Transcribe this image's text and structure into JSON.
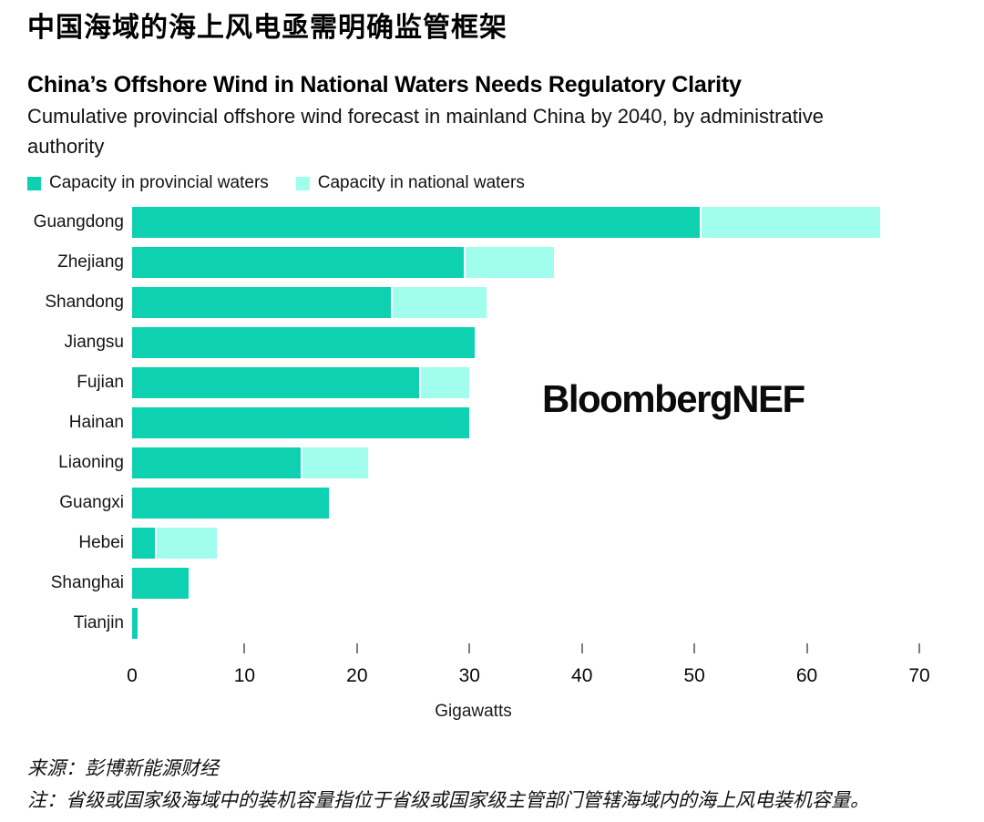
{
  "header": {
    "title_zh": "中国海域的海上风电亟需明确监管框架",
    "title_en": "China’s Offshore Wind in National Waters Needs Regulatory Clarity",
    "subtitle": "Cumulative provincial offshore wind forecast in mainland China by 2040, by administrative authority"
  },
  "legend": {
    "provincial_label": "Capacity in provincial waters",
    "national_label": "Capacity in national waters"
  },
  "branding": {
    "logo_text": "BloombergNEF"
  },
  "colors": {
    "provincial": "#0ed1b2",
    "national": "#a1fdec",
    "tick": "#7d7d7d"
  },
  "chart_data": {
    "type": "bar",
    "orientation": "horizontal",
    "stacked": true,
    "title": "China’s Offshore Wind in National Waters Needs Regulatory Clarity",
    "subtitle": "Cumulative provincial offshore wind forecast in mainland China by 2040, by administrative authority",
    "categories": [
      "Guangdong",
      "Zhejiang",
      "Shandong",
      "Jiangsu",
      "Fujian",
      "Hainan",
      "Liaoning",
      "Guangxi",
      "Hebei",
      "Shanghai",
      "Tianjin"
    ],
    "series": [
      {
        "name": "Capacity in provincial waters",
        "color": "#0ed1b2",
        "values": [
          50.5,
          29.5,
          23,
          30.5,
          25.5,
          30,
          15,
          17.5,
          2,
          5,
          0.5
        ]
      },
      {
        "name": "Capacity in national waters",
        "color": "#a1fdec",
        "values": [
          16,
          8,
          8.5,
          0,
          4.5,
          0,
          6,
          0,
          5.5,
          0,
          0
        ]
      }
    ],
    "totals": [
      66.5,
      37.5,
      31.5,
      30.5,
      30,
      30,
      21,
      17.5,
      7.5,
      5,
      0.5
    ],
    "xlabel": "Gigawatts",
    "ylabel": "",
    "xlim": [
      0,
      70
    ],
    "xticks": [
      0,
      10,
      20,
      30,
      40,
      50,
      60,
      70
    ],
    "grid": false,
    "legend_position": "top"
  },
  "footer": {
    "source": "来源：彭博新能源财经",
    "note": "注：省级或国家级海域中的装机容量指位于省级或国家级主管部门管辖海域内的海上风电装机容量。"
  }
}
